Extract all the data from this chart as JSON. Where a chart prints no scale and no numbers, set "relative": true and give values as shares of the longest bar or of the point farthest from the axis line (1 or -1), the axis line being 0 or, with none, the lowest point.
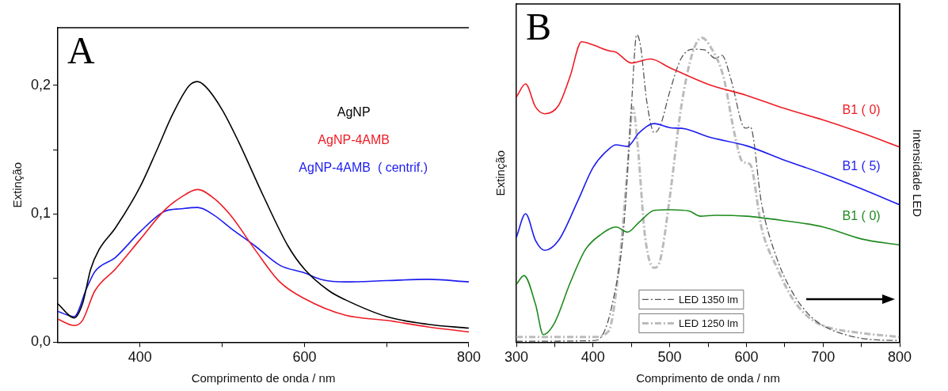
{
  "chart_data": [
    {
      "type": "line",
      "title": "A",
      "xlabel": "Comprimento de onda / nm",
      "ylabel": "Extinção",
      "xlim": [
        300,
        800
      ],
      "xticks": [
        400,
        {
          "value": 500,
          "label": null
        },
        600,
        {
          "value": 700,
          "label": null
        },
        800
      ],
      "ylim": [
        0,
        0.245
      ],
      "yticks": [
        {
          "value": 0,
          "label": "0,0"
        },
        {
          "value": 0.05,
          "label": null
        },
        {
          "value": 0.1,
          "label": "0,1"
        },
        {
          "value": 0.15,
          "label": null
        },
        {
          "value": 0.2,
          "label": "0,2"
        }
      ],
      "grid": false,
      "legend": "top right",
      "series": [
        {
          "name": "AgNP",
          "color": "#000000",
          "x": [
            300,
            320,
            330,
            340,
            350,
            370,
            400,
            420,
            440,
            460,
            470,
            480,
            500,
            520,
            550,
            580,
            600,
            630,
            650,
            700,
            750,
            800
          ],
          "values": [
            0.03,
            0.019,
            0.03,
            0.057,
            0.072,
            0.089,
            0.121,
            0.149,
            0.178,
            0.2,
            0.203,
            0.199,
            0.181,
            0.156,
            0.114,
            0.075,
            0.057,
            0.04,
            0.033,
            0.02,
            0.014,
            0.011
          ]
        },
        {
          "name": "AgNP-4AMB",
          "color": "#ee1c25",
          "x": [
            300,
            320,
            330,
            345,
            370,
            400,
            430,
            450,
            470,
            490,
            510,
            540,
            570,
            600,
            650,
            700,
            750,
            800
          ],
          "values": [
            0.018,
            0.013,
            0.017,
            0.04,
            0.057,
            0.08,
            0.103,
            0.113,
            0.119,
            0.112,
            0.099,
            0.072,
            0.047,
            0.034,
            0.021,
            0.017,
            0.012,
            0.008
          ]
        },
        {
          "name": "AgNP-4AMB  ( centrif.)",
          "color": "#1c1cf0",
          "x": [
            300,
            320,
            335,
            345,
            370,
            400,
            430,
            450,
            470,
            490,
            510,
            540,
            570,
            600,
            620,
            650,
            700,
            750,
            800
          ],
          "values": [
            0.024,
            0.02,
            0.042,
            0.055,
            0.066,
            0.086,
            0.102,
            0.104,
            0.105,
            0.099,
            0.089,
            0.075,
            0.06,
            0.054,
            0.049,
            0.047,
            0.048,
            0.049,
            0.047
          ]
        }
      ]
    },
    {
      "type": "line",
      "title": "B",
      "xlabel": "Comprimento de onda / nm",
      "ylabel": "Extinção",
      "y2label": "Intensidade LED",
      "relative": true,
      "xlim": [
        300,
        800
      ],
      "xticks": [
        300,
        {
          "value": 350,
          "label": null
        },
        400,
        {
          "value": 450,
          "label": null
        },
        500,
        {
          "value": 550,
          "label": null
        },
        600,
        {
          "value": 650,
          "label": null
        },
        700,
        {
          "value": 750,
          "label": null
        },
        800
      ],
      "grid": false,
      "legend": "bottom",
      "series": [
        {
          "name": "B1 ( 0)",
          "color": "#ee1c25",
          "x": [
            300,
            312,
            325,
            337,
            355,
            370,
            385,
            400,
            420,
            430,
            450,
            475,
            500,
            550,
            600,
            650,
            700,
            750,
            800
          ],
          "values": [
            0.797,
            0.84,
            0.765,
            0.743,
            0.77,
            0.864,
            0.977,
            0.967,
            0.948,
            0.943,
            0.908,
            0.921,
            0.893,
            0.839,
            0.803,
            0.76,
            0.723,
            0.681,
            0.635
          ]
        },
        {
          "name": "B1 ( 5)",
          "color": "#1c1cf0",
          "x": [
            300,
            312,
            325,
            337,
            355,
            380,
            400,
            420,
            430,
            445,
            460,
            480,
            500,
            520,
            550,
            600,
            650,
            700,
            750,
            800
          ],
          "values": [
            0.341,
            0.418,
            0.331,
            0.299,
            0.331,
            0.459,
            0.568,
            0.627,
            0.642,
            0.637,
            0.681,
            0.711,
            0.698,
            0.694,
            0.668,
            0.639,
            0.592,
            0.548,
            0.499,
            0.447
          ]
        },
        {
          "name": "B1 ( 0)",
          "color": "#1e8a1e",
          "x": [
            300,
            310,
            325,
            335,
            350,
            370,
            390,
            410,
            430,
            445,
            460,
            480,
            500,
            525,
            540,
            560,
            600,
            650,
            700,
            750,
            800
          ],
          "values": [
            0.188,
            0.217,
            0.123,
            0.025,
            0.064,
            0.192,
            0.301,
            0.35,
            0.375,
            0.358,
            0.39,
            0.429,
            0.431,
            0.427,
            0.41,
            0.413,
            0.41,
            0.395,
            0.375,
            0.336,
            0.316
          ]
        },
        {
          "name": "LED 1350 lm",
          "color": "#555555",
          "line_style": "dashed",
          "x": [
            300,
            400,
            410,
            425,
            440,
            450,
            457,
            462,
            470,
            480,
            488,
            500,
            515,
            530,
            545,
            560,
            568,
            580,
            595,
            600,
            605,
            620,
            640,
            660,
            680,
            700,
            750,
            800
          ],
          "values": [
            0.003,
            0.005,
            0.015,
            0.123,
            0.37,
            0.765,
            1,
            0.963,
            0.785,
            0.681,
            0.706,
            0.814,
            0.923,
            0.953,
            0.951,
            0.923,
            0.933,
            0.854,
            0.706,
            0.696,
            0.701,
            0.449,
            0.271,
            0.163,
            0.094,
            0.054,
            0.013,
            0.005
          ]
        },
        {
          "name": "LED 1250 lm",
          "color": "#bbbbbb",
          "line_style": "dashed",
          "x": [
            300,
            400,
            420,
            435,
            445,
            452,
            458,
            468,
            480,
            488,
            500,
            515,
            530,
            542,
            555,
            570,
            585,
            595,
            605,
            620,
            640,
            660,
            680,
            700,
            750,
            800
          ],
          "values": [
            0.017,
            0.017,
            0.035,
            0.271,
            0.568,
            0.765,
            0.647,
            0.341,
            0.242,
            0.271,
            0.469,
            0.765,
            0.943,
            0.99,
            0.953,
            0.864,
            0.673,
            0.587,
            0.578,
            0.37,
            0.242,
            0.143,
            0.084,
            0.054,
            0.03,
            0.017
          ]
        }
      ]
    }
  ]
}
